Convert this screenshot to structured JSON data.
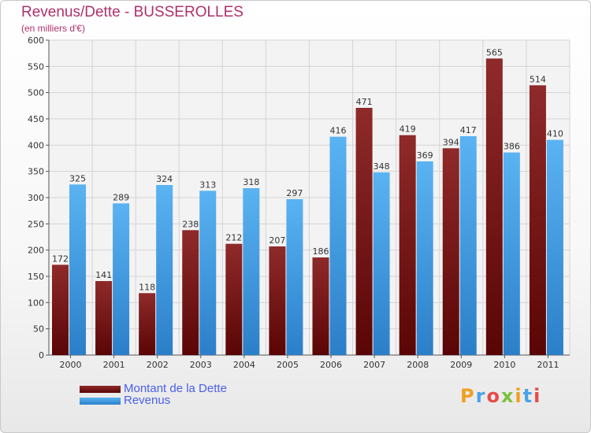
{
  "title": "Revenus/Dette - BUSSEROLLES",
  "subtitle": "(en milliers d'€)",
  "logo_text": "Proxiti",
  "chart_data": {
    "type": "bar",
    "title": "Revenus/Dette - BUSSEROLLES",
    "ylabel": "(en milliers d'€)",
    "xlabel": "",
    "categories": [
      "2000",
      "2001",
      "2002",
      "2003",
      "2004",
      "2005",
      "2006",
      "2007",
      "2008",
      "2009",
      "2010",
      "2011"
    ],
    "series": [
      {
        "name": "Montant de la Dette",
        "color": "#7a1a1a",
        "values": [
          172,
          141,
          118,
          238,
          212,
          207,
          186,
          471,
          419,
          394,
          565,
          514
        ]
      },
      {
        "name": "Revenus",
        "color": "#4aa3e8",
        "values": [
          325,
          289,
          324,
          313,
          318,
          297,
          416,
          348,
          369,
          417,
          386,
          410
        ]
      }
    ],
    "ylim": [
      0,
      600
    ],
    "yticks": [
      0,
      50,
      100,
      150,
      200,
      250,
      300,
      350,
      400,
      450,
      500,
      550,
      600
    ],
    "grid": true,
    "legend": "bottom-left"
  }
}
